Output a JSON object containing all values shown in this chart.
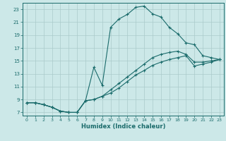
{
  "bg_color": "#cce8e8",
  "grid_color": "#aacaca",
  "line_color": "#1a6b6b",
  "xlabel": "Humidex (Indice chaleur)",
  "xlim": [
    -0.5,
    23.5
  ],
  "ylim": [
    6.5,
    24.0
  ],
  "yticks": [
    7,
    9,
    11,
    13,
    15,
    17,
    19,
    21,
    23
  ],
  "xticks": [
    0,
    1,
    2,
    3,
    4,
    5,
    6,
    7,
    8,
    9,
    10,
    11,
    12,
    13,
    14,
    15,
    16,
    17,
    18,
    19,
    20,
    21,
    22,
    23
  ],
  "curve1_x": [
    0,
    1,
    2,
    3,
    4,
    5,
    6,
    7,
    8,
    9,
    10,
    11,
    12,
    13,
    14,
    15,
    16,
    17,
    18,
    19,
    20,
    21,
    22,
    23
  ],
  "curve1_y": [
    8.5,
    8.5,
    8.2,
    7.8,
    7.2,
    7.0,
    7.0,
    8.8,
    14.0,
    11.2,
    20.2,
    21.5,
    22.2,
    23.3,
    23.5,
    22.3,
    21.8,
    20.2,
    19.2,
    17.8,
    17.5,
    15.8,
    15.5,
    15.2
  ],
  "curve2_x": [
    0,
    1,
    2,
    3,
    4,
    5,
    6,
    7,
    8,
    9,
    10,
    11,
    12,
    13,
    14,
    15,
    16,
    17,
    18,
    19,
    20,
    21,
    22,
    23
  ],
  "curve2_y": [
    8.5,
    8.5,
    8.2,
    7.8,
    7.2,
    7.0,
    7.0,
    8.8,
    9.0,
    9.5,
    10.5,
    11.5,
    12.5,
    13.5,
    14.5,
    15.5,
    16.0,
    16.3,
    16.5,
    16.0,
    14.8,
    14.8,
    15.0,
    15.2
  ],
  "curve3_x": [
    0,
    1,
    2,
    3,
    4,
    5,
    6,
    7,
    8,
    9,
    10,
    11,
    12,
    13,
    14,
    15,
    16,
    17,
    18,
    19,
    20,
    21,
    22,
    23
  ],
  "curve3_y": [
    8.5,
    8.5,
    8.2,
    7.8,
    7.2,
    7.0,
    7.0,
    8.8,
    9.0,
    9.5,
    10.0,
    10.8,
    11.8,
    12.8,
    13.5,
    14.3,
    14.8,
    15.2,
    15.5,
    15.8,
    14.2,
    14.5,
    14.8,
    15.2
  ]
}
